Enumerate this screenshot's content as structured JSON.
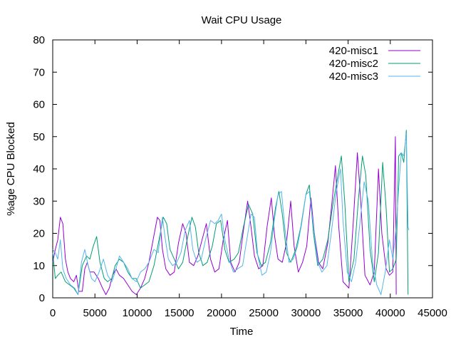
{
  "chart_data": {
    "type": "line",
    "title": "Wait CPU Usage",
    "xlabel": "Time",
    "ylabel": "%age CPU Blocked",
    "xlim": [
      0,
      45000
    ],
    "ylim": [
      0,
      80
    ],
    "x_ticks": [
      "0",
      "5000",
      "10000",
      "15000",
      "20000",
      "25000",
      "30000",
      "35000",
      "40000",
      "45000"
    ],
    "y_ticks": [
      "0",
      "10",
      "20",
      "30",
      "40",
      "50",
      "60",
      "70",
      "80"
    ],
    "grid": false,
    "legend_position": "top-right",
    "series": [
      {
        "name": "420-misc1",
        "color": "#9400d3",
        "points": [
          [
            0,
            11
          ],
          [
            300,
            15
          ],
          [
            600,
            18
          ],
          [
            900,
            25
          ],
          [
            1200,
            23
          ],
          [
            1500,
            12
          ],
          [
            1800,
            8
          ],
          [
            2100,
            6
          ],
          [
            2500,
            5
          ],
          [
            2800,
            7
          ],
          [
            3100,
            2
          ],
          [
            3500,
            2
          ],
          [
            3800,
            9
          ],
          [
            4100,
            11
          ],
          [
            4400,
            8
          ],
          [
            4900,
            8
          ],
          [
            5400,
            6
          ],
          [
            5900,
            3
          ],
          [
            6300,
            1
          ],
          [
            6700,
            3
          ],
          [
            7100,
            7
          ],
          [
            7500,
            9
          ],
          [
            7900,
            7
          ],
          [
            8400,
            6
          ],
          [
            8900,
            4
          ],
          [
            9400,
            2
          ],
          [
            9900,
            1
          ],
          [
            10400,
            3
          ],
          [
            10900,
            6
          ],
          [
            11400,
            11
          ],
          [
            11900,
            18
          ],
          [
            12400,
            25
          ],
          [
            12700,
            24
          ],
          [
            13000,
            15
          ],
          [
            13400,
            9
          ],
          [
            13900,
            7
          ],
          [
            14400,
            8
          ],
          [
            14900,
            17
          ],
          [
            15400,
            23
          ],
          [
            15800,
            20
          ],
          [
            16200,
            11
          ],
          [
            16700,
            10
          ],
          [
            17200,
            13
          ],
          [
            17700,
            18
          ],
          [
            18200,
            23
          ],
          [
            18700,
            12
          ],
          [
            19200,
            8
          ],
          [
            19700,
            9
          ],
          [
            20200,
            18
          ],
          [
            20700,
            24
          ],
          [
            21100,
            11
          ],
          [
            21600,
            8
          ],
          [
            22100,
            11
          ],
          [
            22600,
            21
          ],
          [
            23100,
            30
          ],
          [
            23500,
            22
          ],
          [
            23900,
            13
          ],
          [
            24400,
            9
          ],
          [
            24900,
            10
          ],
          [
            25400,
            22
          ],
          [
            25900,
            31
          ],
          [
            26300,
            19
          ],
          [
            26700,
            12
          ],
          [
            27200,
            11
          ],
          [
            27700,
            17
          ],
          [
            28200,
            30
          ],
          [
            28600,
            16
          ],
          [
            29100,
            8
          ],
          [
            29600,
            11
          ],
          [
            30100,
            16
          ],
          [
            30600,
            31
          ],
          [
            31000,
            20
          ],
          [
            31500,
            11
          ],
          [
            32000,
            9
          ],
          [
            32600,
            17
          ],
          [
            33100,
            30
          ],
          [
            33500,
            41
          ],
          [
            33900,
            22
          ],
          [
            34400,
            5
          ],
          [
            35100,
            3
          ],
          [
            35600,
            23
          ],
          [
            36100,
            45
          ],
          [
            36500,
            30
          ],
          [
            37000,
            7
          ],
          [
            37600,
            4
          ],
          [
            38100,
            8
          ],
          [
            38600,
            40
          ],
          [
            39000,
            20
          ],
          [
            39500,
            9
          ],
          [
            39900,
            7
          ],
          [
            40300,
            8
          ],
          [
            40600,
            50
          ],
          [
            40700,
            1
          ]
        ]
      },
      {
        "name": "420-misc2",
        "color": "#009e73",
        "points": [
          [
            0,
            14
          ],
          [
            300,
            6
          ],
          [
            600,
            7
          ],
          [
            1000,
            8
          ],
          [
            1500,
            5
          ],
          [
            2000,
            4
          ],
          [
            2500,
            3
          ],
          [
            3000,
            1
          ],
          [
            3500,
            10
          ],
          [
            4000,
            13
          ],
          [
            4400,
            12
          ],
          [
            4800,
            16
          ],
          [
            5200,
            19
          ],
          [
            5600,
            11
          ],
          [
            6100,
            6
          ],
          [
            6500,
            5
          ],
          [
            7000,
            6
          ],
          [
            7400,
            10
          ],
          [
            7900,
            12
          ],
          [
            8400,
            11
          ],
          [
            8900,
            8
          ],
          [
            9400,
            6
          ],
          [
            9900,
            6
          ],
          [
            10400,
            3
          ],
          [
            10900,
            4
          ],
          [
            11400,
            5
          ],
          [
            12000,
            10
          ],
          [
            12600,
            18
          ],
          [
            13100,
            25
          ],
          [
            13500,
            23
          ],
          [
            13900,
            15
          ],
          [
            14400,
            12
          ],
          [
            14900,
            9
          ],
          [
            15400,
            11
          ],
          [
            16000,
            19
          ],
          [
            16500,
            25
          ],
          [
            16900,
            22
          ],
          [
            17300,
            14
          ],
          [
            17800,
            10
          ],
          [
            18300,
            11
          ],
          [
            18900,
            16
          ],
          [
            19400,
            23
          ],
          [
            19900,
            24
          ],
          [
            20400,
            15
          ],
          [
            20900,
            11
          ],
          [
            21500,
            12
          ],
          [
            22000,
            14
          ],
          [
            22600,
            22
          ],
          [
            23200,
            29
          ],
          [
            23700,
            26
          ],
          [
            24200,
            14
          ],
          [
            24700,
            10
          ],
          [
            25200,
            11
          ],
          [
            25800,
            17
          ],
          [
            26400,
            28
          ],
          [
            26800,
            33
          ],
          [
            27200,
            26
          ],
          [
            27700,
            14
          ],
          [
            28200,
            11
          ],
          [
            28800,
            15
          ],
          [
            29400,
            22
          ],
          [
            30000,
            32
          ],
          [
            30400,
            35
          ],
          [
            30900,
            20
          ],
          [
            31400,
            10
          ],
          [
            32000,
            12
          ],
          [
            32600,
            18
          ],
          [
            33200,
            29
          ],
          [
            33800,
            38
          ],
          [
            34200,
            44
          ],
          [
            34600,
            30
          ],
          [
            35100,
            5
          ],
          [
            35700,
            12
          ],
          [
            36200,
            30
          ],
          [
            36700,
            44
          ],
          [
            37100,
            38
          ],
          [
            37600,
            15
          ],
          [
            38100,
            5
          ],
          [
            38600,
            14
          ],
          [
            39100,
            42
          ],
          [
            39500,
            28
          ],
          [
            39900,
            8
          ],
          [
            40300,
            9
          ],
          [
            40700,
            12
          ],
          [
            41000,
            44
          ],
          [
            41300,
            45
          ],
          [
            41600,
            42
          ],
          [
            41900,
            52
          ],
          [
            42100,
            1
          ]
        ]
      },
      {
        "name": "420-misc3",
        "color": "#56b4e9",
        "points": [
          [
            0,
            15
          ],
          [
            300,
            14
          ],
          [
            600,
            12
          ],
          [
            900,
            18
          ],
          [
            1200,
            9
          ],
          [
            1600,
            6
          ],
          [
            2100,
            4
          ],
          [
            2600,
            3
          ],
          [
            3000,
            1
          ],
          [
            3400,
            11
          ],
          [
            3800,
            15
          ],
          [
            4200,
            10
          ],
          [
            4600,
            6
          ],
          [
            5000,
            5
          ],
          [
            5500,
            8
          ],
          [
            6000,
            12
          ],
          [
            6500,
            7
          ],
          [
            7000,
            5
          ],
          [
            7400,
            8
          ],
          [
            7900,
            13
          ],
          [
            8400,
            11
          ],
          [
            8900,
            9
          ],
          [
            9400,
            6
          ],
          [
            9900,
            5
          ],
          [
            10400,
            8
          ],
          [
            10900,
            9
          ],
          [
            11400,
            11
          ],
          [
            12000,
            15
          ],
          [
            12500,
            14
          ],
          [
            13000,
            25
          ],
          [
            13300,
            19
          ],
          [
            13700,
            12
          ],
          [
            14200,
            10
          ],
          [
            14700,
            11
          ],
          [
            15200,
            14
          ],
          [
            15700,
            21
          ],
          [
            16200,
            24
          ],
          [
            16600,
            15
          ],
          [
            17100,
            11
          ],
          [
            17600,
            12
          ],
          [
            18100,
            18
          ],
          [
            18700,
            24
          ],
          [
            19200,
            23
          ],
          [
            19600,
            24
          ],
          [
            20000,
            26
          ],
          [
            20400,
            18
          ],
          [
            20900,
            12
          ],
          [
            21400,
            8
          ],
          [
            21900,
            9
          ],
          [
            22500,
            10
          ],
          [
            23000,
            18
          ],
          [
            23500,
            26
          ],
          [
            23900,
            25
          ],
          [
            24300,
            13
          ],
          [
            24800,
            7
          ],
          [
            25300,
            8
          ],
          [
            25800,
            14
          ],
          [
            26300,
            25
          ],
          [
            26700,
            32
          ],
          [
            27100,
            33
          ],
          [
            27500,
            22
          ],
          [
            28000,
            11
          ],
          [
            28500,
            12
          ],
          [
            29000,
            16
          ],
          [
            29500,
            23
          ],
          [
            30000,
            32
          ],
          [
            30400,
            33
          ],
          [
            30900,
            22
          ],
          [
            31400,
            11
          ],
          [
            31900,
            8
          ],
          [
            32500,
            10
          ],
          [
            33000,
            20
          ],
          [
            33600,
            33
          ],
          [
            34100,
            40
          ],
          [
            34400,
            24
          ],
          [
            34900,
            8
          ],
          [
            35400,
            5
          ],
          [
            35900,
            11
          ],
          [
            36400,
            23
          ],
          [
            36900,
            36
          ],
          [
            37400,
            30
          ],
          [
            37900,
            11
          ],
          [
            38400,
            4
          ],
          [
            38900,
            1
          ],
          [
            39400,
            8
          ],
          [
            39900,
            18
          ],
          [
            40300,
            12
          ],
          [
            40700,
            22
          ],
          [
            41000,
            34
          ],
          [
            41300,
            45
          ],
          [
            41600,
            44
          ],
          [
            41900,
            51
          ],
          [
            42100,
            22
          ],
          [
            42200,
            21
          ]
        ]
      }
    ]
  }
}
